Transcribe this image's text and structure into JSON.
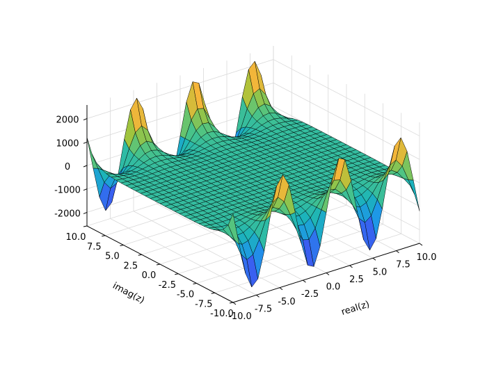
{
  "chart_data": {
    "type": "surface",
    "title": "",
    "xlabel": "real(z)",
    "ylabel": "imag(z)",
    "zlabel": "",
    "xlim": [
      -10,
      10
    ],
    "ylim": [
      -10,
      10
    ],
    "zlim": [
      -2580,
      2580
    ],
    "xticks": [
      "-10.0",
      "-7.5",
      "-5.0",
      "-2.5",
      "0.0",
      "2.5",
      "5.0",
      "7.5",
      "10.0"
    ],
    "yticks": [
      "-10.0",
      "-7.5",
      "-5.0",
      "-2.5",
      "0.0",
      "2.5",
      "5.0",
      "7.5",
      "10.0"
    ],
    "zticks": [
      "-2000",
      "-1000",
      "0",
      "1000",
      "2000"
    ],
    "grid": true,
    "surface": {
      "expression": "0.2*sin(x)*cosh(y)",
      "x_range": [
        -10,
        10
      ],
      "y_range": [
        -10,
        10
      ],
      "samples": 30,
      "color_range": [
        -2200,
        2200
      ]
    },
    "colormap": [
      "#3a2fb8",
      "#3a5ef0",
      "#1e96e8",
      "#1cb5b8",
      "#4cc486",
      "#a5c43a",
      "#f5b53a",
      "#f8e82a"
    ],
    "edge_color": "#000000",
    "pane_grid_color": "#d9d9d9"
  }
}
